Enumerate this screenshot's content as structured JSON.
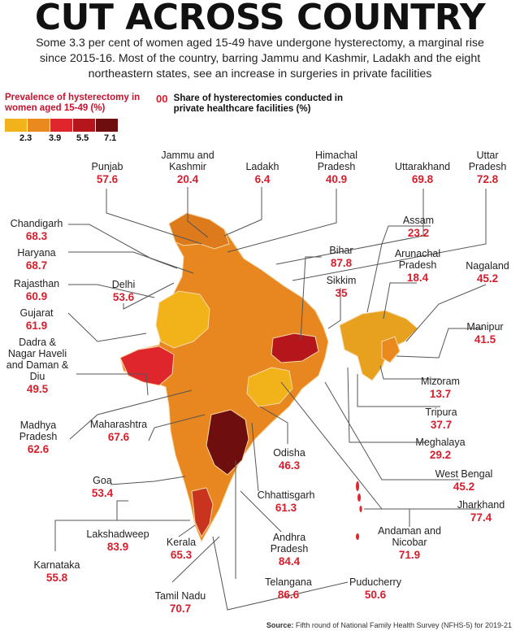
{
  "title": "CUT ACROSS COUNTRY",
  "subtitle": "Some 3.3 per cent of women aged 15-49 have undergone hysterectomy, a marginal rise since 2015-16. Most of the country, barring Jammu and Kashmir, Ladakh and the eight northeastern states, see an increase in surgeries in private facilities",
  "legend": {
    "title": "Prevalence of hysterectomy in women aged 15-49 (%)",
    "ticks": [
      "2.3",
      "3.9",
      "5.5",
      "7.1"
    ],
    "colors": [
      "#f2b21a",
      "#ea8a1e",
      "#e0262d",
      "#b5161c",
      "#6e0e0e"
    ]
  },
  "share_note": {
    "marker": "00",
    "text": "Share of hysterectomies conducted in private healthcare facilities (%)"
  },
  "states": [
    {
      "name": "Punjab",
      "value": "57.6"
    },
    {
      "name": "Jammu and Kashmir",
      "value": "20.4"
    },
    {
      "name": "Ladakh",
      "value": "6.4"
    },
    {
      "name": "Himachal Pradesh",
      "value": "40.9"
    },
    {
      "name": "Uttarakhand",
      "value": "69.8"
    },
    {
      "name": "Uttar Pradesh",
      "value": "72.8"
    },
    {
      "name": "Chandigarh",
      "value": "68.3"
    },
    {
      "name": "Haryana",
      "value": "68.7"
    },
    {
      "name": "Rajasthan",
      "value": "60.9"
    },
    {
      "name": "Delhi",
      "value": "53.6"
    },
    {
      "name": "Gujarat",
      "value": "61.9"
    },
    {
      "name": "Dadra & Nagar Haveli and Daman & Diu",
      "value": "49.5"
    },
    {
      "name": "Madhya Pradesh",
      "value": "62.6"
    },
    {
      "name": "Maharashtra",
      "value": "67.6"
    },
    {
      "name": "Goa",
      "value": "53.4"
    },
    {
      "name": "Lakshadweep",
      "value": "83.9"
    },
    {
      "name": "Karnataka",
      "value": "55.8"
    },
    {
      "name": "Kerala",
      "value": "65.3"
    },
    {
      "name": "Tamil Nadu",
      "value": "70.7"
    },
    {
      "name": "Telangana",
      "value": "86.6"
    },
    {
      "name": "Andhra Pradesh",
      "value": "84.4"
    },
    {
      "name": "Chhattisgarh",
      "value": "61.3"
    },
    {
      "name": "Odisha",
      "value": "46.3"
    },
    {
      "name": "Puducherry",
      "value": "50.6"
    },
    {
      "name": "Assam",
      "value": "23.2"
    },
    {
      "name": "Bihar",
      "value": "87.8"
    },
    {
      "name": "Sikkim",
      "value": "35"
    },
    {
      "name": "Arunachal Pradesh",
      "value": "18.4"
    },
    {
      "name": "Nagaland",
      "value": "45.2"
    },
    {
      "name": "Manipur",
      "value": "41.5"
    },
    {
      "name": "Mizoram",
      "value": "13.7"
    },
    {
      "name": "Tripura",
      "value": "37.7"
    },
    {
      "name": "Meghalaya",
      "value": "29.2"
    },
    {
      "name": "West Bengal",
      "value": "45.2"
    },
    {
      "name": "Jharkhand",
      "value": "77.4"
    },
    {
      "name": "Andaman and Nicobar",
      "value": "71.9"
    }
  ],
  "source": {
    "label": "Source:",
    "text": "Fifth round of National Family Health Survey (NFHS-5) for 2019-21"
  }
}
